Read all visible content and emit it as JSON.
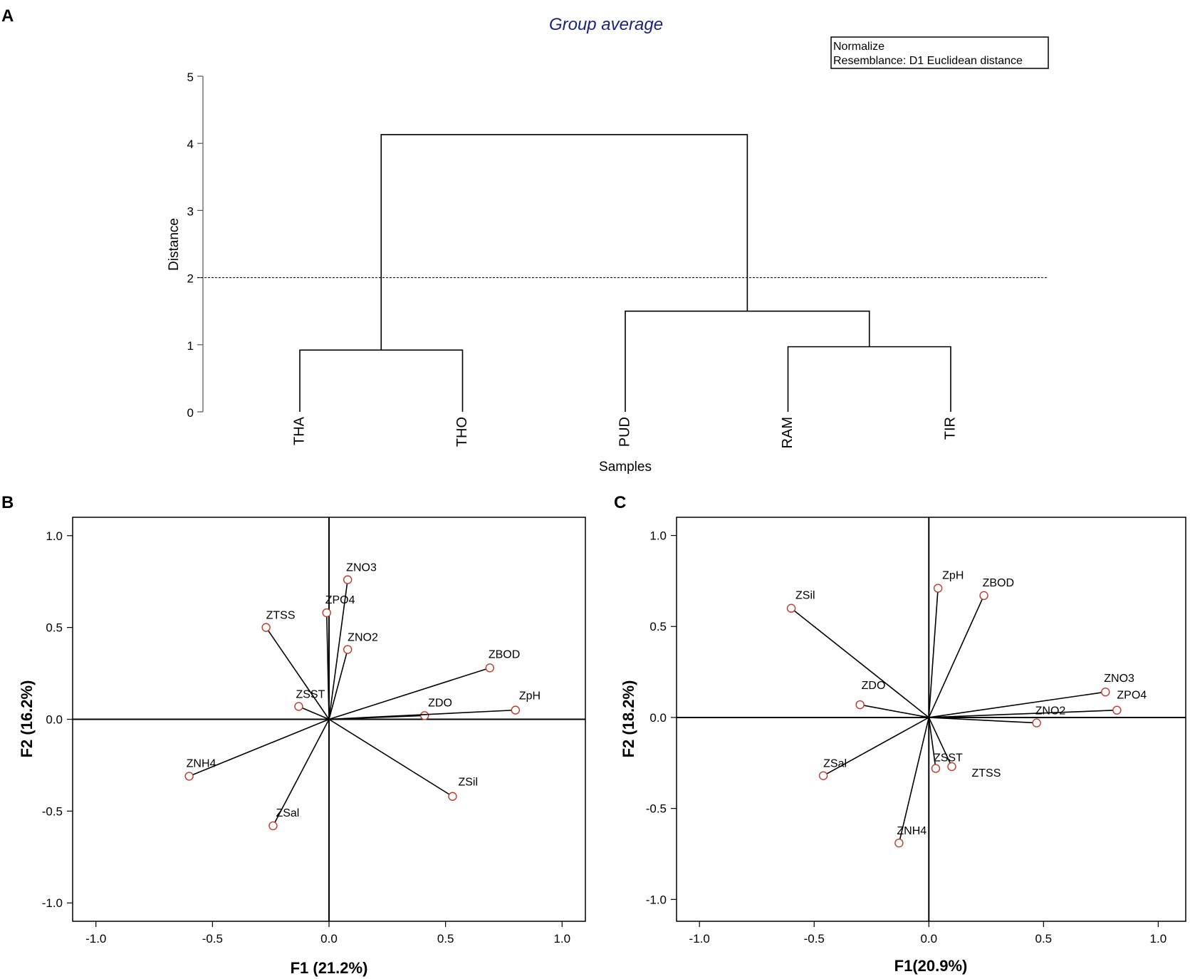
{
  "chart_data": [
    {
      "panel": "A",
      "type": "dendrogram",
      "title": "Group average",
      "annotations": [
        "Normalize",
        "Resemblance: D1 Euclidean distance"
      ],
      "xlabel": "Samples",
      "ylabel": "Distance",
      "ylim": [
        0,
        5
      ],
      "yticks": [
        "0",
        "1",
        "2",
        "3",
        "4",
        "5"
      ],
      "cut_height": 2.0,
      "leaves": [
        "THA",
        "THO",
        "PUD",
        "RAM",
        "TIR"
      ],
      "merges": [
        {
          "left": "THA",
          "right": "THO",
          "height": 0.92
        },
        {
          "left": "RAM",
          "right": "TIR",
          "height": 0.97
        },
        {
          "left": "PUD",
          "right": "RAM+TIR",
          "height": 1.5
        },
        {
          "left": "THA+THO",
          "right": "PUD+RAM+TIR",
          "height": 4.13
        }
      ]
    },
    {
      "panel": "B",
      "type": "biplot",
      "xlabel": "F1 (21.2%)",
      "ylabel": "F2 (16.2%)",
      "xlim": [
        -1.1,
        1.1
      ],
      "ylim": [
        -1.1,
        1.1
      ],
      "xticks": [
        "-1.0",
        "-0.5",
        "0.0",
        "0.5",
        "1.0"
      ],
      "yticks": [
        "-1.0",
        "-0.5",
        "0.0",
        "0.5",
        "1.0"
      ],
      "vectors": [
        {
          "name": "ZNO3",
          "x": 0.08,
          "y": 0.76
        },
        {
          "name": "ZPO4",
          "x": -0.01,
          "y": 0.58
        },
        {
          "name": "ZTSS",
          "x": -0.27,
          "y": 0.5
        },
        {
          "name": "ZNO2",
          "x": 0.08,
          "y": 0.38
        },
        {
          "name": "ZBOD",
          "x": 0.69,
          "y": 0.28
        },
        {
          "name": "ZSST",
          "x": -0.13,
          "y": 0.07
        },
        {
          "name": "ZDO",
          "x": 0.41,
          "y": 0.02
        },
        {
          "name": "ZpH",
          "x": 0.8,
          "y": 0.05
        },
        {
          "name": "ZNH4",
          "x": -0.6,
          "y": -0.31
        },
        {
          "name": "ZSil",
          "x": 0.53,
          "y": -0.42
        },
        {
          "name": "ZSal",
          "x": -0.24,
          "y": -0.58
        }
      ]
    },
    {
      "panel": "C",
      "type": "biplot",
      "xlabel": "F1(20.9%)",
      "ylabel": "F2 (18.2%)",
      "xlim": [
        -1.1,
        1.12
      ],
      "ylim": [
        -1.12,
        1.1
      ],
      "xticks": [
        "-1.0",
        "-0.5",
        "0.0",
        "0.5",
        "1.0"
      ],
      "yticks": [
        "-1.0",
        "-0.5",
        "0.0",
        "0.5",
        "1.0"
      ],
      "vectors": [
        {
          "name": "ZpH",
          "x": 0.04,
          "y": 0.71
        },
        {
          "name": "ZBOD",
          "x": 0.24,
          "y": 0.67
        },
        {
          "name": "ZSil",
          "x": -0.6,
          "y": 0.6
        },
        {
          "name": "ZNO3",
          "x": 0.77,
          "y": 0.14
        },
        {
          "name": "ZPO4",
          "x": 0.82,
          "y": 0.04
        },
        {
          "name": "ZDO",
          "x": -0.3,
          "y": 0.07
        },
        {
          "name": "ZNO2",
          "x": 0.47,
          "y": -0.03
        },
        {
          "name": "ZSST",
          "x": 0.03,
          "y": -0.28
        },
        {
          "name": "ZTSS",
          "x": 0.1,
          "y": -0.27
        },
        {
          "name": "ZSal",
          "x": -0.46,
          "y": -0.32
        },
        {
          "name": "ZNH4",
          "x": -0.13,
          "y": -0.69
        }
      ]
    }
  ],
  "panel_labels": {
    "a": "A",
    "b": "B",
    "c": "C"
  }
}
